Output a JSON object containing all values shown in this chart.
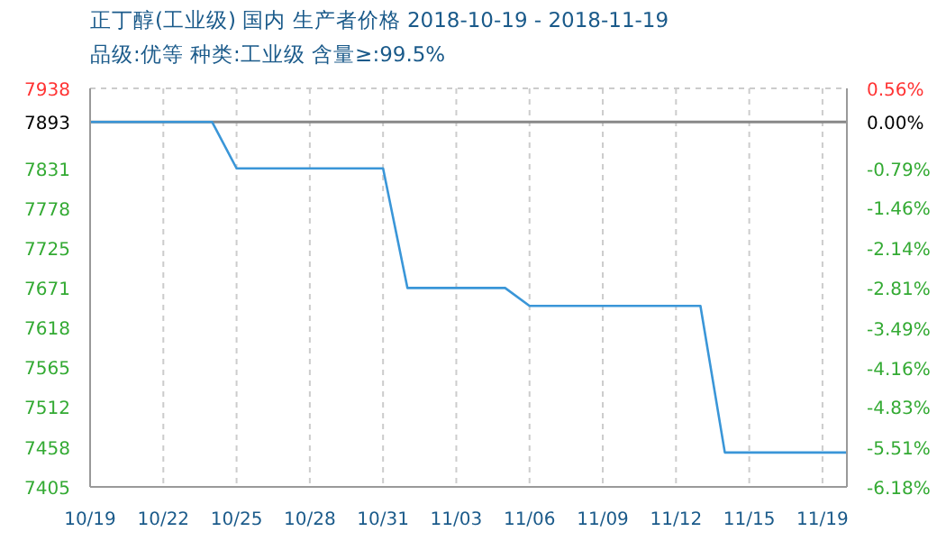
{
  "chart_data": {
    "type": "line",
    "title": "正丁醇(工业级) 国内 生产者价格 2018-10-19 - 2018-11-19",
    "subtitle": "品级:优等 种类:工业级 含量≥:99.5%",
    "categories": [
      "10/19",
      null,
      null,
      "10/22",
      null,
      null,
      "10/25",
      null,
      null,
      "10/28",
      null,
      null,
      "10/31",
      null,
      null,
      "11/03",
      null,
      null,
      "11/06",
      null,
      null,
      "11/09",
      null,
      null,
      "11/12",
      null,
      null,
      "11/15",
      null,
      null,
      "11/19",
      null
    ],
    "series": [
      {
        "color": "#3a96d8",
        "values": [
          7893,
          7893,
          7893,
          7893,
          7893,
          7893,
          7831,
          7831,
          7831,
          7831,
          7831,
          7831,
          7831,
          7671,
          7671,
          7671,
          7671,
          7671,
          7647,
          7647,
          7647,
          7647,
          7647,
          7647,
          7647,
          7647,
          7451,
          7451,
          7451,
          7451,
          7451,
          7451
        ]
      }
    ],
    "ylim": [
      7405,
      7938
    ],
    "yticks": [
      7405,
      7458,
      7512,
      7565,
      7618,
      7671,
      7725,
      7778,
      7831,
      7893,
      7938
    ],
    "y2lim": [
      -6.18,
      0.56
    ],
    "y2ticks": [
      {
        "value": -6.18,
        "label": "-6.18%"
      },
      {
        "value": -5.51,
        "label": "-5.51%"
      },
      {
        "value": -4.83,
        "label": "-4.83%"
      },
      {
        "value": -4.16,
        "label": "-4.16%"
      },
      {
        "value": -3.49,
        "label": "-3.49%"
      },
      {
        "value": -2.81,
        "label": "-2.81%"
      },
      {
        "value": -2.14,
        "label": "-2.14%"
      },
      {
        "value": -1.46,
        "label": "-1.46%"
      },
      {
        "value": -0.79,
        "label": "-0.79%"
      },
      {
        "value": 0,
        "label": "0.00%"
      },
      {
        "value": 0.56,
        "label": "0.56%"
      }
    ],
    "ref_lines": [
      {
        "axis": "y",
        "value": 7893,
        "color": "#888888"
      }
    ],
    "grid": true,
    "line_style": "solid",
    "marker": "none"
  }
}
